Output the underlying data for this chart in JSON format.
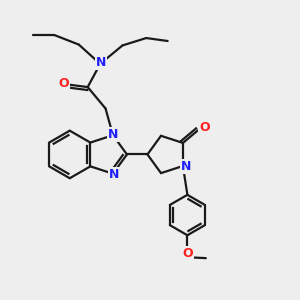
{
  "bg_color": "#eeeeee",
  "bond_color": "#1a1a1a",
  "N_color": "#2020ff",
  "O_color": "#ff2020",
  "lw": 1.6,
  "figsize": [
    3.0,
    3.0
  ],
  "dpi": 100,
  "xlim": [
    0,
    10
  ],
  "ylim": [
    0,
    10
  ]
}
